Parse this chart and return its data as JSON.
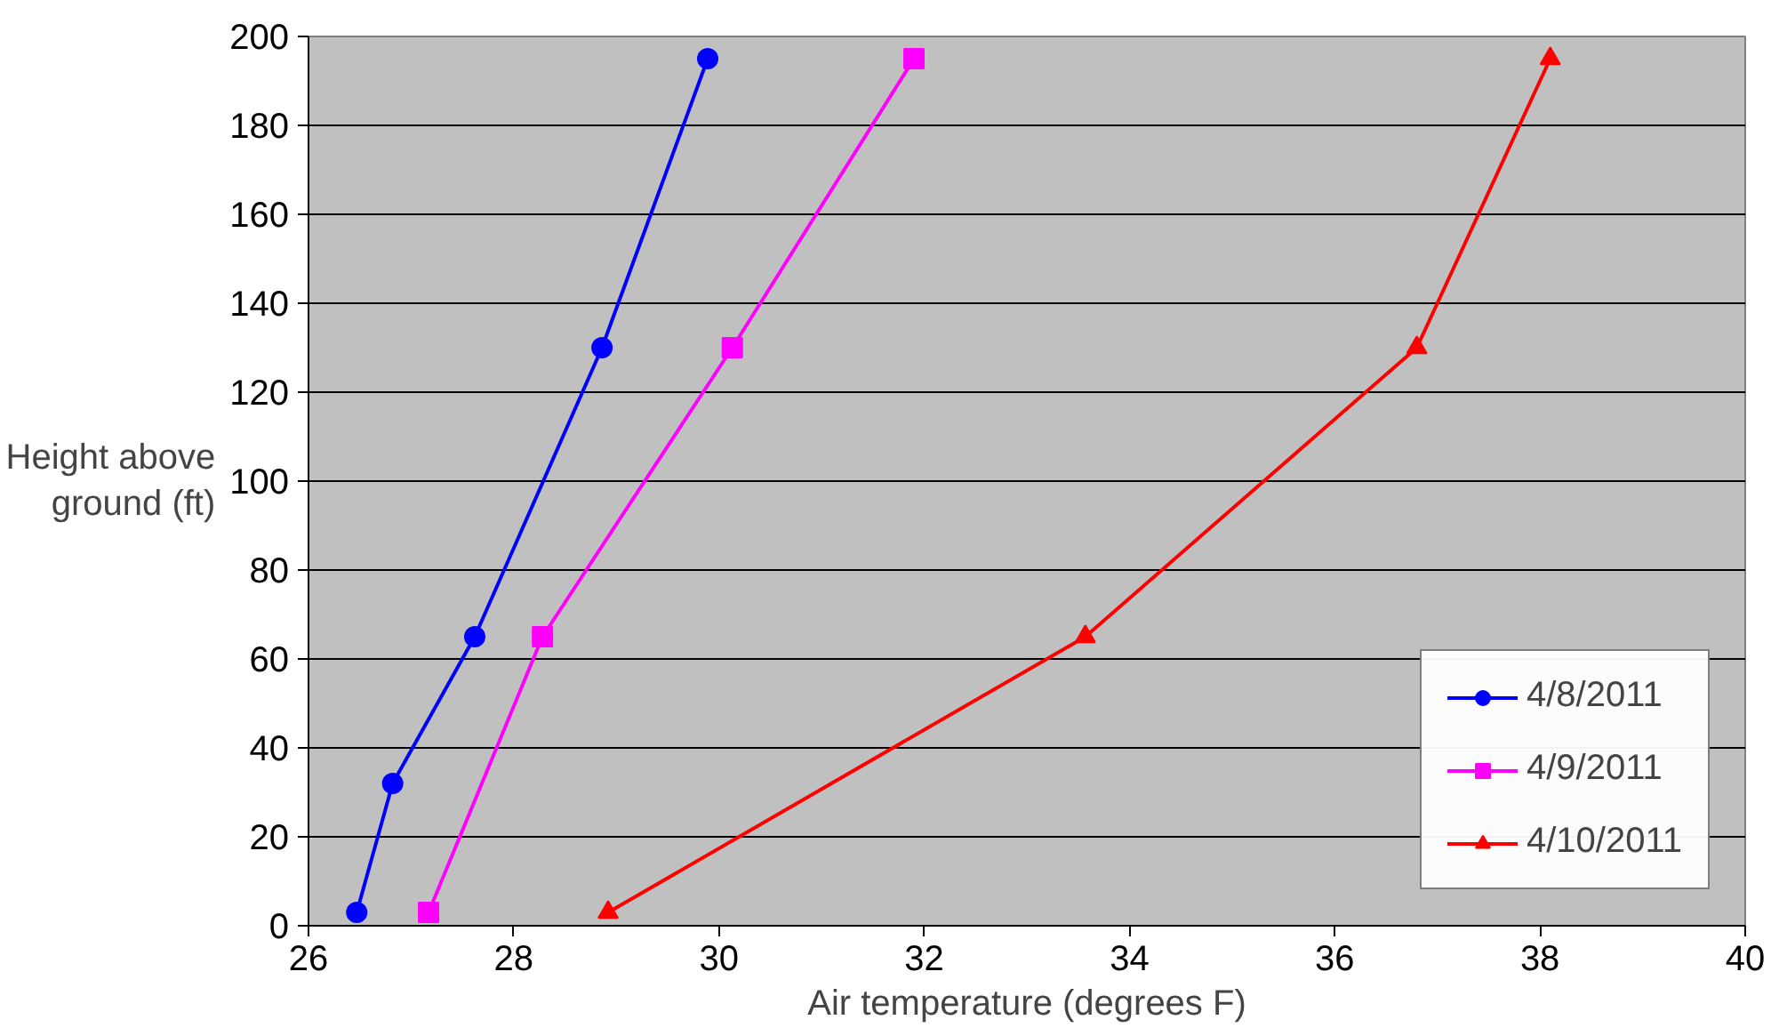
{
  "chart_data": {
    "type": "line",
    "xlabel": "Air temperature (degrees F)",
    "ylabel": "Height above ground (ft)",
    "xlim": [
      26,
      40
    ],
    "xticks": [
      26,
      28,
      30,
      32,
      34,
      36,
      38,
      40
    ],
    "ylim": [
      0,
      200
    ],
    "yticks": [
      0,
      20,
      40,
      60,
      80,
      100,
      120,
      140,
      160,
      180,
      200
    ],
    "grid": "y",
    "legend": "bottom right",
    "series": [
      {
        "name": "4/8/2011",
        "color": "#0000ff",
        "marker": "circle",
        "x": [
          26.47,
          26.82,
          27.62,
          28.86,
          29.89
        ],
        "values": [
          3,
          32,
          65,
          130,
          195
        ]
      },
      {
        "name": "4/9/2011",
        "color": "#ff00ff",
        "marker": "square",
        "x": [
          27.17,
          28.28,
          30.13,
          31.9
        ],
        "values": [
          3,
          65,
          130,
          195
        ]
      },
      {
        "name": "4/10/2011",
        "color": "#ff0000",
        "marker": "triangle",
        "x": [
          28.92,
          33.57,
          36.8,
          38.1
        ],
        "values": [
          3,
          65,
          130,
          195
        ]
      }
    ]
  }
}
